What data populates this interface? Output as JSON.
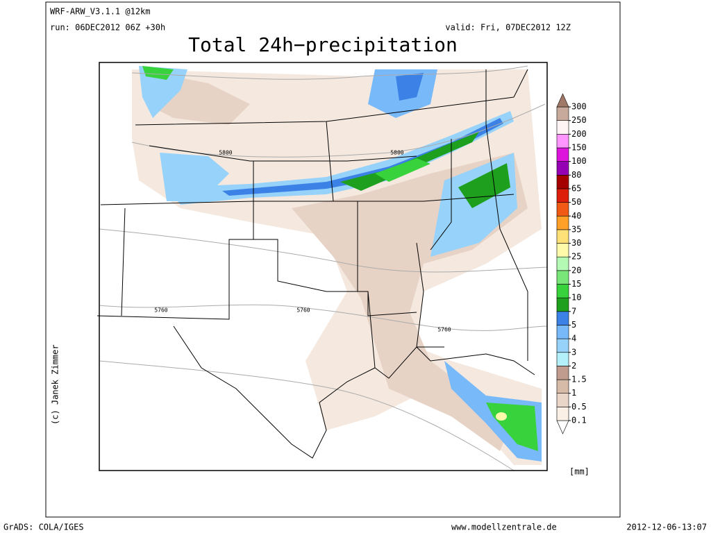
{
  "header": {
    "model": "WRF-ARW_V3.1.1 @12km",
    "run": "run: 06DEC2012 06Z +30h",
    "valid": "valid: Fri, 07DEC2012 12Z",
    "title": "Total 24h−precipitation"
  },
  "map": {
    "contour_labels": [
      "5800",
      "5800",
      "5760",
      "5760",
      "5760"
    ]
  },
  "colorbar": {
    "unit": "[mm]",
    "ticks": [
      0.1,
      0.5,
      1,
      1.5,
      2,
      3,
      4,
      5,
      7,
      10,
      15,
      20,
      25,
      30,
      35,
      40,
      50,
      65,
      80,
      100,
      150,
      200,
      250,
      300
    ],
    "colors": [
      "#ffffff",
      "#faf0e6",
      "#e9d6c8",
      "#d6bba8",
      "#c09c8e",
      "#b4f0fa",
      "#96d2fa",
      "#78b9fa",
      "#3c82e6",
      "#1ea01e",
      "#37d23c",
      "#78e678",
      "#b4fab4",
      "#fffaaa",
      "#ffe178",
      "#ffa028",
      "#f05a14",
      "#dc1e0a",
      "#a50000",
      "#9600b4",
      "#dc14dc",
      "#ff96ff",
      "#fff5f5",
      "#c8aa9c",
      "#a07868"
    ]
  },
  "credit": "(c) Janek Zimmer",
  "footer": {
    "left": "GrADS: COLA/IGES",
    "center": "www.modellzentrale.de",
    "right": "2012-12-06-13:07"
  }
}
